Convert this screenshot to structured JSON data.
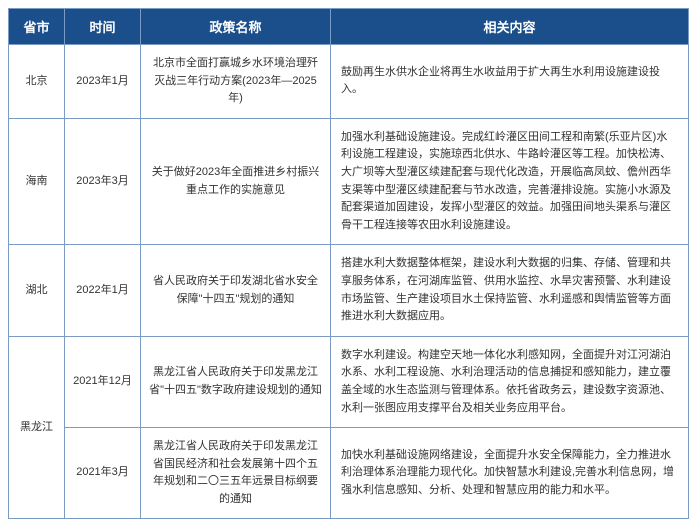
{
  "header": {
    "province": "省市",
    "time": "时间",
    "policy": "政策名称",
    "content": "相关内容"
  },
  "rows": [
    {
      "province": "北京",
      "time": "2023年1月",
      "policy": "北京市全面打赢城乡水环境治理歼灭战三年行动方案(2023年—2025年)",
      "content": "鼓励再生水供水企业将再生水收益用于扩大再生水利用设施建设投入。"
    },
    {
      "province": "海南",
      "time": "2023年3月",
      "policy": "关于做好2023年全面推进乡村振兴重点工作的实施意见",
      "content": "加强水利基础设施建设。完成红岭灌区田间工程和南繁(乐亚片区)水利设施工程建设，实施琼西北供水、牛路岭灌区等工程。加快松涛、大广坝等大型灌区续建配套与现代化改造，开展临高凤蚊、儋州西华支渠等中型灌区续建配套与节水改造，完善灌排设施。实施小水源及配套渠道加固建设，发挥小型灌区的效益。加强田间地头渠系与灌区骨干工程连接等农田水利设施建设。"
    },
    {
      "province": "湖北",
      "time": "2022年1月",
      "policy": "省人民政府关于印发湖北省水安全保障\"十四五\"规划的通知",
      "content": "搭建水利大数据整体框架，建设水利大数据的归集、存储、管理和共享服务体系，在河湖库监管、供用水监控、水旱灾害预警、水利建设市场监管、生产建设项目水土保持监管、水利遥感和舆情监管等方面推进水利大数据应用。"
    },
    {
      "province": "黑龙江",
      "rowspan": 2,
      "entries": [
        {
          "time": "2021年12月",
          "policy": "黑龙江省人民政府关于印发黑龙江省\"十四五\"数字政府建设规划的通知",
          "content": "数字水利建设。构建空天地一体化水利感知网，全面提升对江河湖泊水系、水利工程设施、水利治理活动的信息捕捉和感知能力，建立覆盖全域的水生态监测与管理体系。依托省政务云，建设数字资源池、水利一张图应用支撑平台及相关业务应用平台。"
        },
        {
          "time": "2021年3月",
          "policy": "黑龙江省人民政府关于印发黑龙江省国民经济和社会发展第十四个五年规划和二〇三五年远景目标纲要的通知",
          "content": "加快水利基础设施网络建设，全面提升水安全保障能力，全力推进水利治理体系治理能力现代化。加快智慧水利建设,完善水利信息网，增强水利信息感知、分析、处理和智慧应用的能力和水平。"
        }
      ]
    }
  ],
  "style": {
    "header_bg": "#1b4f8c",
    "header_fg": "#ffffff",
    "border_color": "#7a9bc4",
    "cell_fg": "#333333",
    "body_bg": "#ffffff"
  }
}
